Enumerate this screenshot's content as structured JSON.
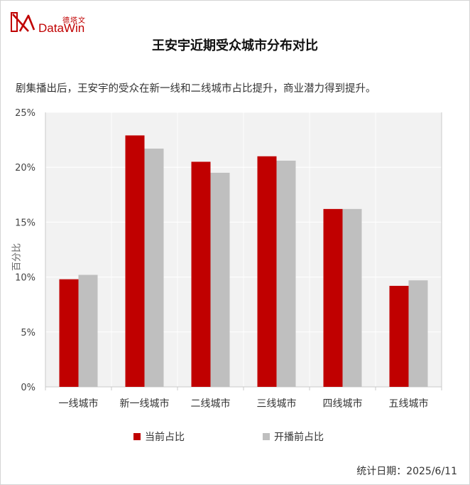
{
  "logo": {
    "cn": "德塔文",
    "en": "DataWin",
    "icon": "datawin-logo-icon",
    "color": "#c00000"
  },
  "header": {
    "title": "王安宇近期受众城市分布对比",
    "subtitle": "剧集播出后，王安宇的受众在新一线和二线城市占比提升，商业潜力得到提升。"
  },
  "footer": {
    "date_text": "统计日期：2025/6/11"
  },
  "chart_data": {
    "type": "bar",
    "title": "王安宇近期受众城市分布对比",
    "xlabel": "",
    "ylabel": "百分比",
    "categories": [
      "一线城市",
      "新一线城市",
      "二线城市",
      "三线城市",
      "四线城市",
      "五线城市"
    ],
    "series": [
      {
        "name": "当前占比",
        "color": "#c00000",
        "values": [
          9.8,
          22.9,
          20.5,
          21.0,
          16.2,
          9.2
        ]
      },
      {
        "name": "开播前占比",
        "color": "#bfbfbf",
        "values": [
          10.2,
          21.7,
          19.5,
          20.6,
          16.2,
          9.7
        ]
      }
    ],
    "ylim": [
      0,
      25
    ],
    "yticks": [
      0,
      5,
      10,
      15,
      20,
      25
    ],
    "ytick_labels": [
      "0%",
      "5%",
      "10%",
      "15%",
      "20%",
      "25%"
    ],
    "grid": true,
    "plot_background": "#f2f2f2",
    "legend_position": "bottom"
  }
}
